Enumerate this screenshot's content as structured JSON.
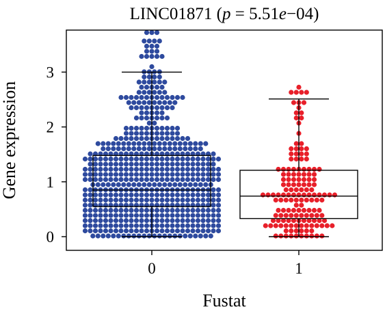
{
  "chart_data": {
    "type": "beeswarm-boxplot",
    "title": {
      "prefix": "LINC01871 (",
      "p_symbol": "p",
      "equals": " = 5.51",
      "e_symbol": "e",
      "suffix": "−04)"
    },
    "xlabel": "Fustat",
    "ylabel": "Gene expression",
    "categories": [
      "0",
      "1"
    ],
    "y_ticks": [
      "0",
      "1",
      "2",
      "3"
    ],
    "ylim": [
      0,
      3.75
    ],
    "colors": {
      "group_0": "#2e4a9e",
      "group_1": "#e8202a",
      "box": "#000000"
    },
    "groups": [
      {
        "name": "0",
        "n_points": 760,
        "min": 0.0,
        "q1": 0.55,
        "median": 0.85,
        "q3": 1.48,
        "whisker_low": 0.0,
        "whisker_high": 3.0,
        "max": 3.75
      },
      {
        "name": "1",
        "n_points": 150,
        "min": 0.0,
        "q1": 0.33,
        "median": 0.74,
        "q3": 1.21,
        "whisker_low": 0.0,
        "whisker_high": 2.51,
        "max": 2.7
      }
    ]
  }
}
